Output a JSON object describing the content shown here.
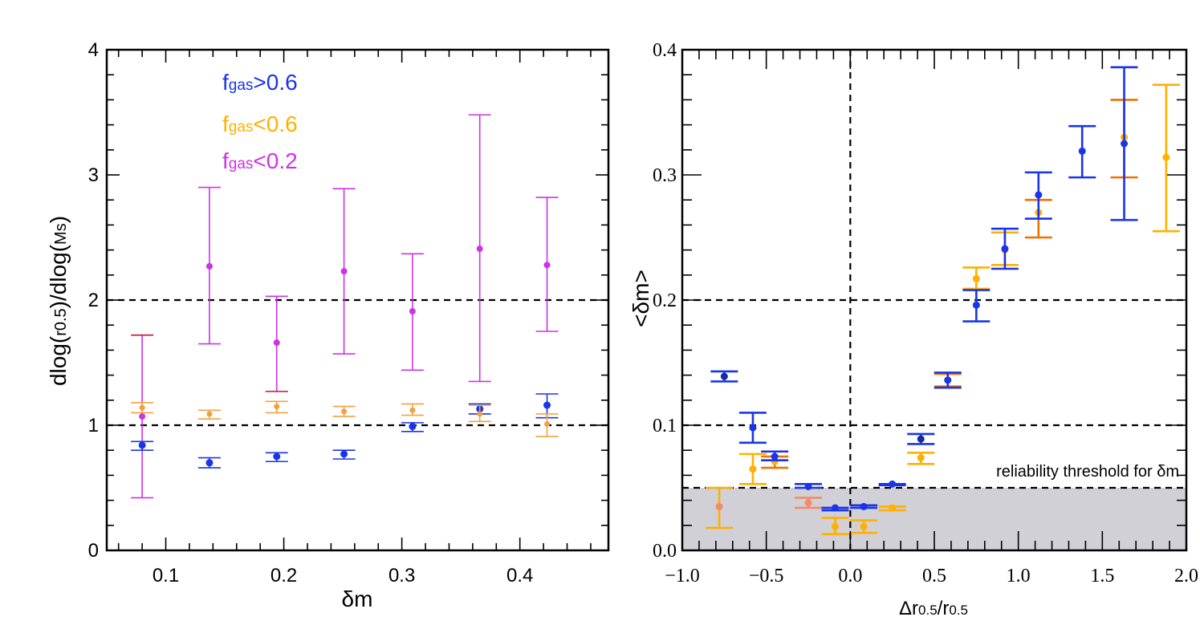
{
  "chart_data": [
    {
      "type": "scatter",
      "title": "",
      "xlabel": "δm",
      "ylabel_main": "dlog(",
      "ylabel_sub1": "r0.5",
      "ylabel_mid": ")/dlog(",
      "ylabel_sub2": "Ms",
      "ylabel_end": ")",
      "xlim": [
        0.05,
        0.475
      ],
      "ylim": [
        0,
        4
      ],
      "xticks": [
        0.1,
        0.2,
        0.3,
        0.4
      ],
      "xtick_labels": [
        "0.1",
        "0.2",
        "0.3",
        "0.4"
      ],
      "yticks": [
        0,
        1,
        2,
        3,
        4
      ],
      "ytick_labels": [
        "0",
        "1",
        "2",
        "3",
        "4"
      ],
      "hlines": [
        1,
        2
      ],
      "legend": [
        {
          "prefix": "f",
          "sub": "gas",
          "suffix": ">0.6",
          "color": "#1a35e8"
        },
        {
          "prefix": "f",
          "sub": "gas",
          "suffix": "<0.6",
          "color": "#ffb000"
        },
        {
          "prefix": "f",
          "sub": "gas",
          "suffix": "<0.2",
          "color": "#cc33e6"
        }
      ],
      "series": [
        {
          "name": "fgas<0.2",
          "color": "#cc33e6",
          "marker_size": 4,
          "bar_width": 1.6,
          "points": [
            {
              "x": 0.08,
              "y": 1.07,
              "lo": 0.42,
              "hi": 1.72,
              "err_color": "#cc33e6",
              "hi_color": "#c8102e"
            },
            {
              "x": 0.137,
              "y": 2.27,
              "lo": 1.65,
              "hi": 2.9
            },
            {
              "x": 0.194,
              "y": 1.66,
              "lo": 1.27,
              "hi": 2.03,
              "lo_color": "#c8102e"
            },
            {
              "x": 0.251,
              "y": 2.23,
              "lo": 1.57,
              "hi": 2.89
            },
            {
              "x": 0.309,
              "y": 1.91,
              "lo": 1.44,
              "hi": 2.37
            },
            {
              "x": 0.366,
              "y": 2.41,
              "lo": 1.35,
              "hi": 3.48
            },
            {
              "x": 0.423,
              "y": 2.28,
              "lo": 1.75,
              "hi": 2.82
            }
          ]
        },
        {
          "name": "fgas>0.6",
          "color": "#1a35e8",
          "marker_size": 4.5,
          "bar_width": 1.6,
          "points": [
            {
              "x": 0.08,
              "y": 0.84,
              "lo": 0.8,
              "hi": 0.87
            },
            {
              "x": 0.137,
              "y": 0.7,
              "lo": 0.66,
              "hi": 0.74
            },
            {
              "x": 0.194,
              "y": 0.75,
              "lo": 0.71,
              "hi": 0.78
            },
            {
              "x": 0.251,
              "y": 0.77,
              "lo": 0.73,
              "hi": 0.8
            },
            {
              "x": 0.309,
              "y": 0.99,
              "lo": 0.95,
              "hi": 1.02
            },
            {
              "x": 0.366,
              "y": 1.13,
              "lo": 1.09,
              "hi": 1.17
            },
            {
              "x": 0.423,
              "y": 1.16,
              "lo": 1.06,
              "hi": 1.25
            }
          ]
        },
        {
          "name": "fgas<0.6",
          "color": "#f4a040",
          "marker_size": 3.5,
          "bar_width": 1.6,
          "points": [
            {
              "x": 0.08,
              "y": 1.14,
              "lo": 1.1,
              "hi": 1.18
            },
            {
              "x": 0.137,
              "y": 1.09,
              "lo": 1.05,
              "hi": 1.12
            },
            {
              "x": 0.194,
              "y": 1.15,
              "lo": 1.1,
              "hi": 1.19
            },
            {
              "x": 0.251,
              "y": 1.11,
              "lo": 1.07,
              "hi": 1.15
            },
            {
              "x": 0.309,
              "y": 1.12,
              "lo": 1.08,
              "hi": 1.17
            },
            {
              "x": 0.366,
              "y": 1.09,
              "lo": 1.03,
              "hi": 1.16
            },
            {
              "x": 0.423,
              "y": 1.01,
              "lo": 0.91,
              "hi": 1.09
            }
          ]
        }
      ]
    },
    {
      "type": "scatter",
      "title": "",
      "xlabel_prefix": "Δr",
      "xlabel_sub1": "0.5",
      "xlabel_mid": "/r",
      "xlabel_sub2": "0.5",
      "ylabel": "<δm>",
      "xlim": [
        -1.0,
        2.0
      ],
      "ylim": [
        0.0,
        0.4
      ],
      "xticks": [
        -1.0,
        -0.5,
        0.0,
        0.5,
        1.0,
        1.5,
        2.0
      ],
      "xtick_labels": [
        "−1.0",
        "−0.5",
        "0.0",
        "0.5",
        "1.0",
        "1.5",
        "2.0"
      ],
      "yticks": [
        0.0,
        0.1,
        0.2,
        0.3,
        0.4
      ],
      "ytick_labels": [
        "0.0",
        "0.1",
        "0.2",
        "0.3",
        "0.4"
      ],
      "hlines": [
        0.05,
        0.1,
        0.2
      ],
      "vline": 0.0,
      "shaded_band": {
        "ymin": 0.0,
        "ymax": 0.05,
        "color": "#d0d0d6"
      },
      "annotation": "reliability threshold for δm",
      "series": [
        {
          "name": "fgas<0.6",
          "color": "#ffb000",
          "marker_size": 4.5,
          "bar_width": 2.6,
          "points": [
            {
              "x": -0.78,
              "y": 0.035,
              "lo": 0.018,
              "hi": 0.05,
              "color": "#f48a6a"
            },
            {
              "x": -0.58,
              "y": 0.065,
              "lo": 0.053,
              "hi": 0.077
            },
            {
              "x": -0.45,
              "y": 0.071,
              "lo": 0.066,
              "hi": 0.075,
              "err_color": "#f07000"
            },
            {
              "x": -0.25,
              "y": 0.038,
              "lo": 0.034,
              "hi": 0.042,
              "color": "#f48a6a",
              "err_color": "#f48a6a"
            },
            {
              "x": -0.09,
              "y": 0.019,
              "lo": 0.013,
              "hi": 0.026
            },
            {
              "x": 0.08,
              "y": 0.019,
              "lo": 0.014,
              "hi": 0.024
            },
            {
              "x": 0.25,
              "y": 0.034,
              "lo": 0.032,
              "hi": 0.035
            },
            {
              "x": 0.42,
              "y": 0.074,
              "lo": 0.069,
              "hi": 0.078
            },
            {
              "x": 0.58,
              "y": 0.136,
              "lo": 0.131,
              "hi": 0.141,
              "err_color": "#f07000"
            },
            {
              "x": 0.75,
              "y": 0.217,
              "lo": 0.209,
              "hi": 0.226
            },
            {
              "x": 0.92,
              "y": 0.24,
              "lo": 0.228,
              "hi": 0.254
            },
            {
              "x": 1.12,
              "y": 0.27,
              "lo": 0.25,
              "hi": 0.28,
              "err_color": "#f07000"
            },
            {
              "x": 1.63,
              "y": 0.33,
              "lo": 0.298,
              "hi": 0.36,
              "err_color": "#f07000"
            },
            {
              "x": 1.88,
              "y": 0.314,
              "lo": 0.255,
              "hi": 0.372
            }
          ]
        },
        {
          "name": "fgas>0.6",
          "color": "#1a35e8",
          "marker_size": 4.5,
          "bar_width": 2.6,
          "points": [
            {
              "x": -0.75,
              "y": 0.139,
              "lo": 0.135,
              "hi": 0.143,
              "color": "#1a2a9e"
            },
            {
              "x": -0.58,
              "y": 0.098,
              "lo": 0.086,
              "hi": 0.11
            },
            {
              "x": -0.45,
              "y": 0.075,
              "lo": 0.072,
              "hi": 0.079
            },
            {
              "x": -0.25,
              "y": 0.051,
              "lo": 0.05,
              "hi": 0.053
            },
            {
              "x": -0.09,
              "y": 0.034,
              "lo": 0.032,
              "hi": 0.034
            },
            {
              "x": 0.08,
              "y": 0.035,
              "lo": 0.034,
              "hi": 0.036
            },
            {
              "x": 0.25,
              "y": 0.053,
              "lo": 0.052,
              "hi": 0.053
            },
            {
              "x": 0.42,
              "y": 0.089,
              "lo": 0.085,
              "hi": 0.093,
              "color": "#1a2a9e"
            },
            {
              "x": 0.58,
              "y": 0.136,
              "lo": 0.13,
              "hi": 0.142
            },
            {
              "x": 0.75,
              "y": 0.196,
              "lo": 0.183,
              "hi": 0.208
            },
            {
              "x": 0.92,
              "y": 0.241,
              "lo": 0.225,
              "hi": 0.257
            },
            {
              "x": 1.12,
              "y": 0.284,
              "lo": 0.265,
              "hi": 0.302
            },
            {
              "x": 1.38,
              "y": 0.319,
              "lo": 0.298,
              "hi": 0.339
            },
            {
              "x": 1.63,
              "y": 0.325,
              "lo": 0.264,
              "hi": 0.386
            }
          ]
        }
      ]
    }
  ]
}
